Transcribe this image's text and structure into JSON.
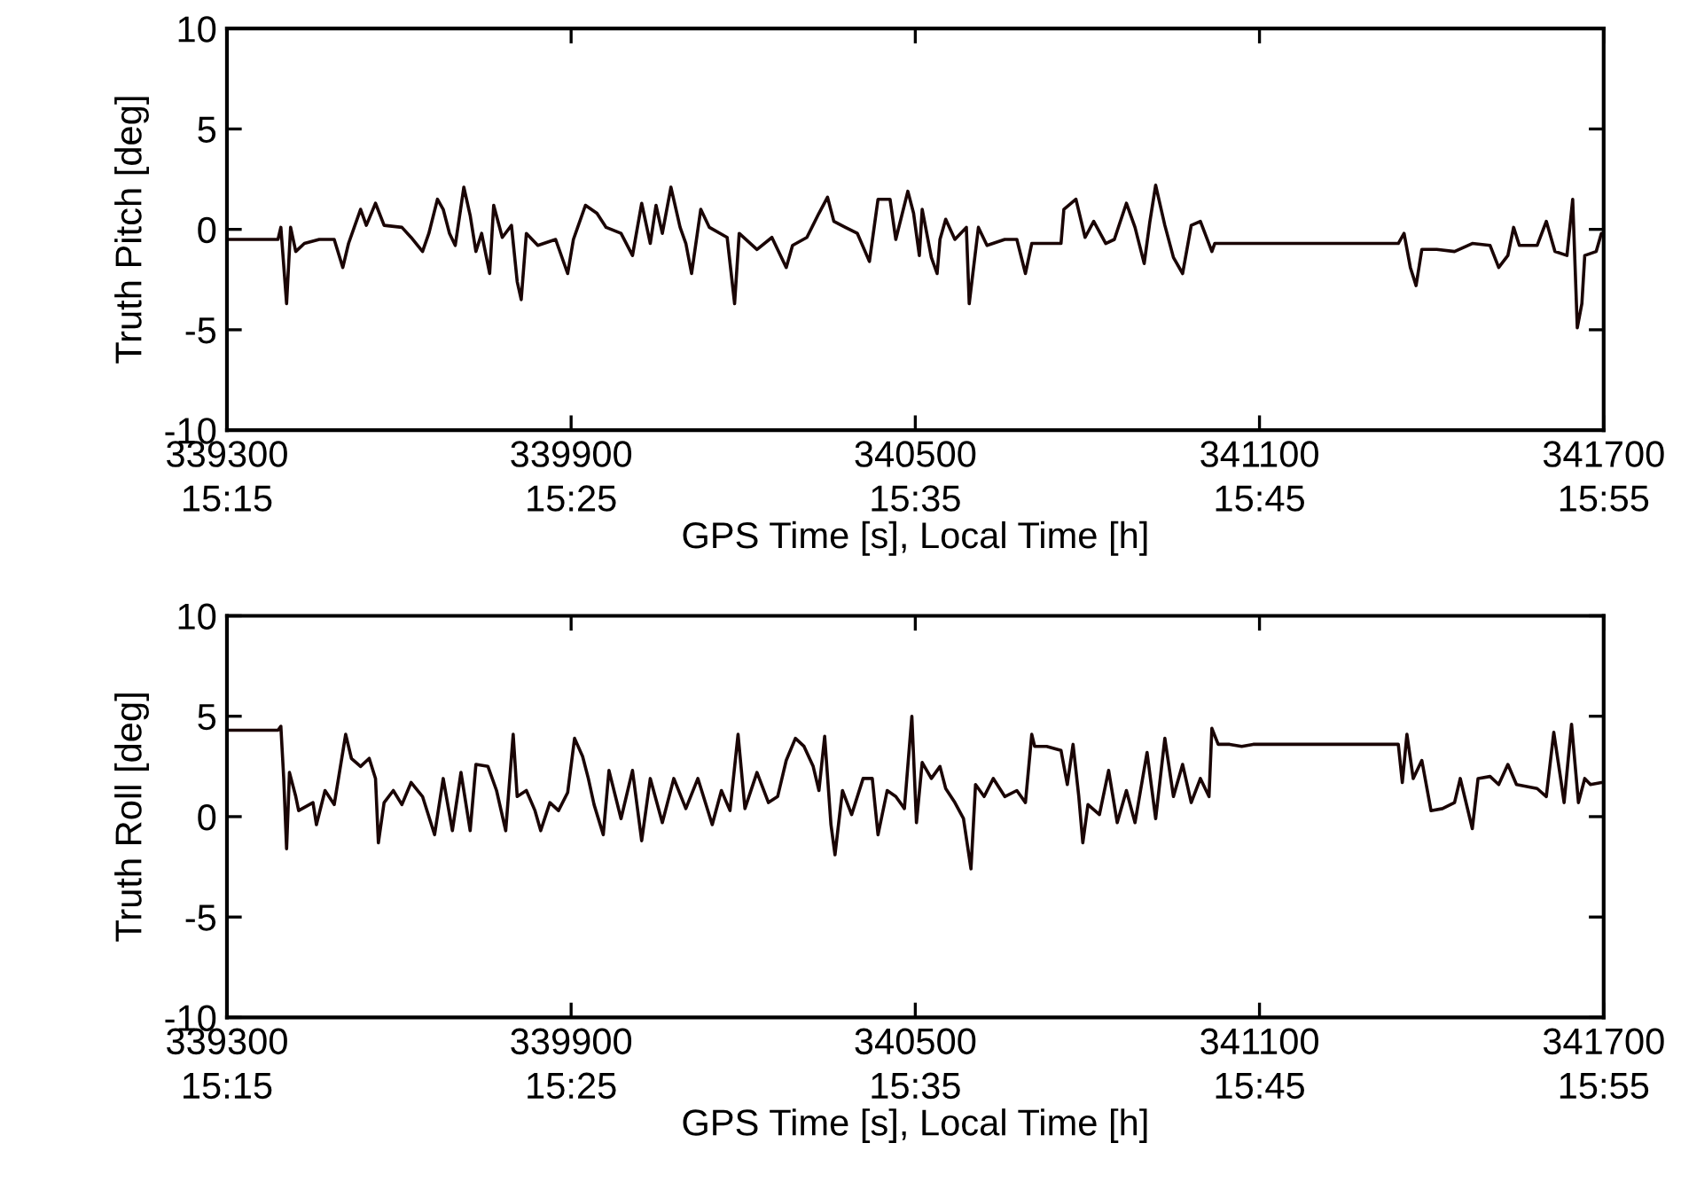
{
  "chart_data": [
    {
      "type": "line",
      "xlabel": "GPS Time [s], Local Time [h]",
      "ylabel": "Truth Pitch [deg]",
      "xlim": [
        339300,
        341700
      ],
      "ylim": [
        -10,
        10
      ],
      "xticks": [
        339300,
        339900,
        340500,
        341100,
        341700
      ],
      "x2lim": [
        15.25,
        15.916667
      ],
      "x2ticks": [
        {
          "value": 15.25,
          "label": "15:15"
        },
        {
          "value": 15.416667,
          "label": "15:25"
        },
        {
          "value": 15.583333,
          "label": "15:35"
        },
        {
          "value": 15.75,
          "label": "15:45"
        },
        {
          "value": 15.916667,
          "label": "15:55"
        }
      ],
      "yticks": [
        -10,
        -5,
        0,
        5,
        10
      ],
      "grid": false,
      "marker": "none",
      "line_style": "solid",
      "x": [
        339300,
        339389,
        339394,
        339404,
        339411,
        339420,
        339435,
        339461,
        339487,
        339502,
        339512,
        339533,
        339543,
        339559,
        339574,
        339605,
        339621,
        339641,
        339652,
        339667,
        339677,
        339688,
        339698,
        339713,
        339724,
        339734,
        339744,
        339758,
        339765,
        339780,
        339796,
        339806,
        339813,
        339822,
        339842,
        339873,
        339894,
        339904,
        339925,
        339945,
        339961,
        339987,
        340007,
        340023,
        340038,
        340048,
        340059,
        340074,
        340090,
        340100,
        340110,
        340126,
        340141,
        340172,
        340185,
        340193,
        340224,
        340250,
        340275,
        340286,
        340311,
        340332,
        340347,
        340358,
        340378,
        340399,
        340420,
        340435,
        340456,
        340466,
        340487,
        340497,
        340507,
        340512,
        340528,
        340538,
        340543,
        340553,
        340569,
        340589,
        340594,
        340610,
        340625,
        340656,
        340677,
        340692,
        340703,
        340754,
        340759,
        340780,
        340796,
        340811,
        340832,
        340847,
        340868,
        340883,
        340899,
        340909,
        340919,
        340935,
        340950,
        340966,
        340981,
        340997,
        341017,
        341022,
        341342,
        341352,
        341363,
        341373,
        341383,
        341409,
        341440,
        341471,
        341502,
        341517,
        341533,
        341543,
        341553,
        341584,
        341600,
        341615,
        341636,
        341646,
        341654,
        341662,
        341667,
        341687,
        341696,
        341700
      ],
      "series": [
        {
          "color": "#1a0505",
          "values": [
            -0.5,
            -0.5,
            0.1,
            -3.7,
            0.1,
            -1.1,
            -0.7,
            -0.5,
            -0.5,
            -1.9,
            -0.7,
            1.0,
            0.2,
            1.3,
            0.2,
            0.1,
            -0.4,
            -1.1,
            -0.2,
            1.5,
            1.0,
            -0.2,
            -0.8,
            2.1,
            0.7,
            -1.1,
            -0.2,
            -2.2,
            1.2,
            -0.4,
            0.2,
            -2.6,
            -3.5,
            -0.2,
            -0.8,
            -0.5,
            -2.2,
            -0.5,
            1.2,
            0.8,
            0.1,
            -0.2,
            -1.3,
            1.3,
            -0.7,
            1.2,
            -0.2,
            2.1,
            0.1,
            -0.7,
            -2.2,
            1.0,
            0.1,
            -0.4,
            -3.7,
            -0.2,
            -1.0,
            -0.4,
            -1.9,
            -0.8,
            -0.4,
            0.8,
            1.6,
            0.4,
            0.1,
            -0.2,
            -1.6,
            1.5,
            1.5,
            -0.5,
            1.9,
            0.8,
            -1.3,
            1.0,
            -1.4,
            -2.2,
            -0.5,
            0.5,
            -0.5,
            0.1,
            -3.7,
            0.1,
            -0.8,
            -0.5,
            -0.5,
            -2.2,
            -0.7,
            -0.7,
            1.0,
            1.5,
            -0.4,
            0.4,
            -0.7,
            -0.5,
            1.3,
            0.1,
            -1.7,
            0.4,
            2.2,
            0.2,
            -1.4,
            -2.2,
            0.2,
            0.4,
            -1.1,
            -0.7,
            -0.7,
            -0.2,
            -1.9,
            -2.8,
            -1.0,
            -1.0,
            -1.1,
            -0.7,
            -0.8,
            -1.9,
            -1.3,
            0.1,
            -0.8,
            -0.8,
            0.4,
            -1.1,
            -1.3,
            1.5,
            -4.9,
            -3.7,
            -1.3,
            -1.1,
            -0.2,
            -0.2
          ]
        }
      ]
    },
    {
      "type": "line",
      "xlabel": "GPS Time [s], Local Time [h]",
      "ylabel": "Truth Roll [deg]",
      "xlim": [
        339300,
        341700
      ],
      "ylim": [
        -10,
        10
      ],
      "xticks": [
        339300,
        339900,
        340500,
        341100,
        341700
      ],
      "x2lim": [
        15.25,
        15.916667
      ],
      "x2ticks": [
        {
          "value": 15.25,
          "label": "15:15"
        },
        {
          "value": 15.416667,
          "label": "15:25"
        },
        {
          "value": 15.583333,
          "label": "15:35"
        },
        {
          "value": 15.75,
          "label": "15:45"
        },
        {
          "value": 15.916667,
          "label": "15:55"
        }
      ],
      "yticks": [
        -10,
        -5,
        0,
        5,
        10
      ],
      "grid": false,
      "marker": "none",
      "line_style": "solid",
      "x": [
        339300,
        339389,
        339394,
        339399,
        339404,
        339409,
        339420,
        339425,
        339450,
        339456,
        339471,
        339487,
        339507,
        339517,
        339533,
        339548,
        339559,
        339564,
        339574,
        339590,
        339605,
        339621,
        339641,
        339662,
        339677,
        339693,
        339708,
        339724,
        339734,
        339755,
        339770,
        339786,
        339799,
        339806,
        339822,
        339837,
        339847,
        339863,
        339878,
        339894,
        339906,
        339920,
        339930,
        339940,
        339956,
        339966,
        339987,
        340007,
        340023,
        340038,
        340059,
        340079,
        340100,
        340121,
        340146,
        340162,
        340177,
        340191,
        340203,
        340224,
        340244,
        340260,
        340275,
        340291,
        340306,
        340322,
        340332,
        340342,
        340353,
        340360,
        340373,
        340389,
        340409,
        340425,
        340435,
        340451,
        340466,
        340481,
        340494,
        340502,
        340512,
        340528,
        340543,
        340553,
        340569,
        340584,
        340597,
        340605,
        340620,
        340636,
        340656,
        340677,
        340692,
        340703,
        340708,
        340729,
        340754,
        340765,
        340775,
        340785,
        340792,
        340801,
        340821,
        340837,
        340852,
        340868,
        340883,
        340904,
        340919,
        340935,
        340950,
        340966,
        340981,
        340997,
        341012,
        341017,
        341028,
        341048,
        341069,
        341089,
        341342,
        341349,
        341357,
        341368,
        341383,
        341399,
        341419,
        341440,
        341450,
        341471,
        341481,
        341502,
        341517,
        341533,
        341548,
        341584,
        341600,
        341613,
        341625,
        341631,
        341644,
        341656,
        341667,
        341677,
        341696,
        341700
      ],
      "series": [
        {
          "color": "#1a0505",
          "values": [
            4.3,
            4.3,
            4.5,
            1.9,
            -1.6,
            2.2,
            1.0,
            0.3,
            0.7,
            -0.4,
            1.3,
            0.6,
            4.1,
            2.9,
            2.5,
            2.9,
            1.9,
            -1.3,
            0.7,
            1.3,
            0.6,
            1.7,
            1.0,
            -0.9,
            1.9,
            -0.7,
            2.2,
            -0.7,
            2.6,
            2.5,
            1.3,
            -0.7,
            4.1,
            1.0,
            1.3,
            0.3,
            -0.7,
            0.7,
            0.3,
            1.2,
            3.9,
            3.0,
            1.9,
            0.6,
            -0.9,
            2.3,
            -0.1,
            2.3,
            -1.2,
            1.9,
            -0.3,
            1.9,
            0.4,
            1.9,
            -0.4,
            1.3,
            0.3,
            4.1,
            0.4,
            2.2,
            0.7,
            1.0,
            2.8,
            3.9,
            3.5,
            2.5,
            1.3,
            4.0,
            -0.4,
            -1.9,
            1.3,
            0.1,
            1.9,
            1.9,
            -0.9,
            1.3,
            1.0,
            0.4,
            5.0,
            -0.3,
            2.7,
            1.9,
            2.5,
            1.4,
            0.7,
            -0.1,
            -2.6,
            1.6,
            1.0,
            1.9,
            1.0,
            1.3,
            0.7,
            4.1,
            3.5,
            3.5,
            3.3,
            1.6,
            3.6,
            1.0,
            -1.3,
            0.6,
            0.1,
            2.3,
            -0.3,
            1.3,
            -0.3,
            3.2,
            -0.1,
            3.9,
            1.0,
            2.6,
            0.7,
            1.9,
            1.0,
            4.4,
            3.6,
            3.6,
            3.5,
            3.6,
            3.6,
            1.7,
            4.1,
            1.9,
            2.8,
            0.3,
            0.4,
            0.7,
            1.9,
            -0.6,
            1.9,
            2.0,
            1.6,
            2.6,
            1.6,
            1.4,
            1.0,
            4.2,
            1.9,
            0.7,
            4.6,
            0.7,
            1.9,
            1.6,
            1.7,
            1.7
          ]
        }
      ]
    }
  ]
}
